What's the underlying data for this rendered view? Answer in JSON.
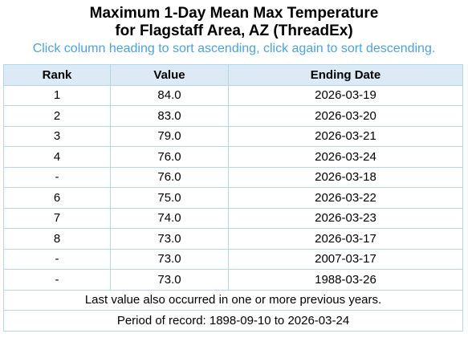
{
  "title": {
    "line1": "Maximum 1-Day Mean Max Temperature",
    "line2": "for Flagstaff Area, AZ (ThreadEx)"
  },
  "instructions": "Click column heading to sort ascending, click again to sort descending.",
  "table": {
    "headers": {
      "rank": "Rank",
      "value": "Value",
      "ending_date": "Ending Date"
    },
    "rows": [
      {
        "rank": "1",
        "value": "84.0",
        "date": "2026-03-19"
      },
      {
        "rank": "2",
        "value": "83.0",
        "date": "2026-03-20"
      },
      {
        "rank": "3",
        "value": "79.0",
        "date": "2026-03-21"
      },
      {
        "rank": "4",
        "value": "76.0",
        "date": "2026-03-24"
      },
      {
        "rank": "-",
        "value": "76.0",
        "date": "2026-03-18"
      },
      {
        "rank": "6",
        "value": "75.0",
        "date": "2026-03-22"
      },
      {
        "rank": "7",
        "value": "74.0",
        "date": "2026-03-23"
      },
      {
        "rank": "8",
        "value": "73.0",
        "date": "2026-03-17"
      },
      {
        "rank": "-",
        "value": "73.0",
        "date": "2007-03-17"
      },
      {
        "rank": "-",
        "value": "73.0",
        "date": "1988-03-26"
      }
    ],
    "footer_note": "Last value also occurred in one or more previous years.",
    "period_of_record": "Period of record: 1898-09-10 to 2026-03-24"
  },
  "colors": {
    "instructions_text": "#4aa3df",
    "header_background": "#dbeaf5",
    "border": "#b5d6e8"
  }
}
